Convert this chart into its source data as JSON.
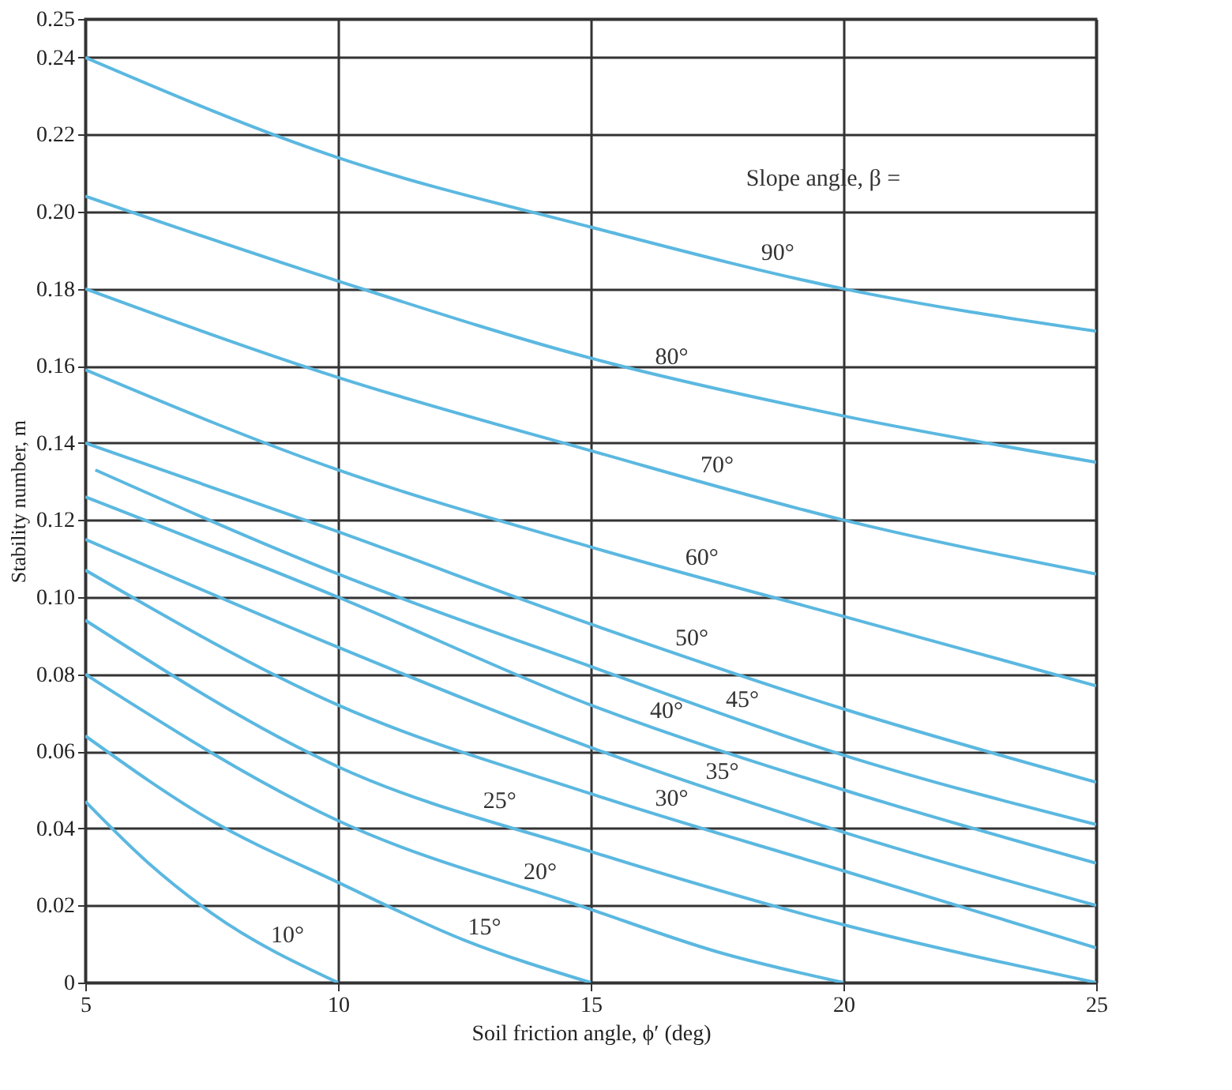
{
  "chart_data": {
    "type": "line",
    "xlabel": "Soil friction angle, ϕ′ (deg)",
    "ylabel": "Stability number, m",
    "xlim": [
      5,
      25
    ],
    "xticks": [
      5,
      10,
      15,
      20,
      25
    ],
    "ylim": [
      0,
      0.25
    ],
    "yticks": [
      0,
      0.02,
      0.04,
      0.06,
      0.08,
      {
        "value": 0.1,
        "label": "0.10"
      },
      0.12,
      0.14,
      0.16,
      0.18,
      {
        "value": 0.2,
        "label": "0.20"
      },
      0.22,
      0.24,
      0.25
    ],
    "grid": true,
    "legend": false,
    "marker": "none",
    "line_style": "solid",
    "series": [
      {
        "name": "90°",
        "color": "#5bb8e0",
        "x": [
          5,
          10,
          15,
          20,
          25
        ],
        "values": [
          0.24,
          0.214,
          0.196,
          0.18,
          0.169
        ]
      },
      {
        "name": "80°",
        "color": "#5bb8e0",
        "x": [
          5,
          10,
          15,
          20,
          25
        ],
        "values": [
          0.204,
          0.182,
          0.162,
          0.147,
          0.135
        ]
      },
      {
        "name": "70°",
        "color": "#5bb8e0",
        "x": [
          5,
          10,
          15,
          20,
          25
        ],
        "values": [
          0.18,
          0.157,
          0.138,
          0.12,
          0.106
        ]
      },
      {
        "name": "60°",
        "color": "#5bb8e0",
        "x": [
          5,
          10,
          15,
          20,
          25
        ],
        "values": [
          0.159,
          0.133,
          0.113,
          0.095,
          0.077
        ]
      },
      {
        "name": "50°",
        "color": "#5bb8e0",
        "x": [
          5,
          10,
          15,
          20,
          25
        ],
        "values": [
          0.14,
          0.117,
          0.093,
          0.071,
          0.052
        ]
      },
      {
        "name": "45°",
        "color": "#5bb8e0",
        "x": [
          5.2,
          10,
          15,
          20,
          25
        ],
        "values": [
          0.133,
          0.106,
          0.082,
          0.059,
          0.041
        ]
      },
      {
        "name": "40°",
        "color": "#5bb8e0",
        "x": [
          5,
          10,
          15,
          20,
          25
        ],
        "values": [
          0.126,
          0.1,
          0.072,
          0.05,
          0.031
        ]
      },
      {
        "name": "35°",
        "color": "#5bb8e0",
        "x": [
          5,
          10,
          15,
          20,
          25
        ],
        "values": [
          0.115,
          0.087,
          0.061,
          0.039,
          0.02
        ]
      },
      {
        "name": "30°",
        "color": "#5bb8e0",
        "x": [
          5,
          10,
          15,
          20,
          25
        ],
        "values": [
          0.107,
          0.072,
          0.049,
          0.029,
          0.009
        ]
      },
      {
        "name": "25°",
        "color": "#5bb8e0",
        "x": [
          5,
          10,
          15,
          20,
          25
        ],
        "values": [
          0.094,
          0.056,
          0.034,
          0.015,
          0
        ]
      },
      {
        "name": "20°",
        "color": "#5bb8e0",
        "x": [
          5,
          10,
          15,
          17.5,
          20
        ],
        "values": [
          0.08,
          0.042,
          0.019,
          0.008,
          0
        ]
      },
      {
        "name": "15°",
        "color": "#5bb8e0",
        "x": [
          5,
          7.5,
          10,
          12.5,
          15
        ],
        "values": [
          0.064,
          0.042,
          0.026,
          0.011,
          0
        ]
      },
      {
        "name": "10°",
        "color": "#5bb8e0",
        "x": [
          5,
          6.25,
          7.5,
          10
        ],
        "values": [
          0.047,
          0.031,
          0.018,
          0
        ]
      }
    ],
    "annotations": [
      "Slope angle, β ="
    ]
  }
}
